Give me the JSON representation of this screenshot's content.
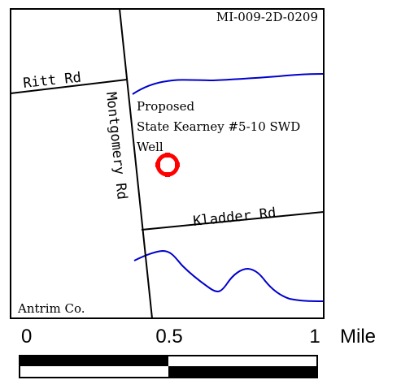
{
  "map": {
    "id_label": "MI-009-2D-0209",
    "county_label": "Antrim Co.",
    "roads": {
      "ritt": "Ritt Rd",
      "montgomery": "Montgomery Rd",
      "kladder": "Kladder Rd"
    },
    "well": {
      "line1": "Proposed",
      "line2": "State Kearney #5-10 SWD",
      "line3": "Well",
      "marker_icon": "well-location-icon",
      "marker_color": "#ff0000"
    },
    "water_color": "#0000cc"
  },
  "scale_bar": {
    "ticks": [
      "0",
      "0.5",
      "1"
    ],
    "unit": "Mile"
  }
}
